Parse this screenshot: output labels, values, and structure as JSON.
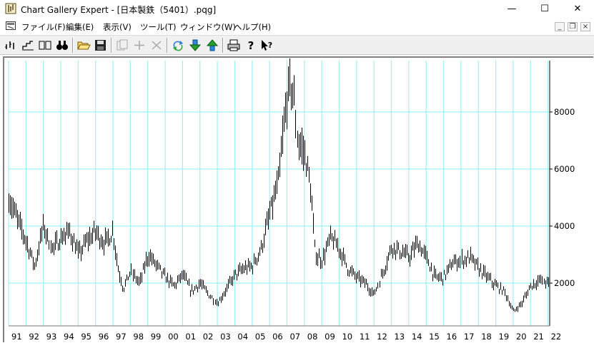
{
  "window": {
    "title": "Chart Gallery Expert - [日本製鉄（5401）.pqg]",
    "minimize_label": "—",
    "maximize_label": "☐",
    "close_label": "✕"
  },
  "menu": {
    "items": [
      {
        "label": "ファイル(F)"
      },
      {
        "label": "編集(E)"
      },
      {
        "label": "表示(V)"
      },
      {
        "label": "ツール(T)"
      },
      {
        "label": "ウィンドウ(W)"
      },
      {
        "label": "ヘルプ(H)"
      }
    ],
    "mdi_minimize": "_",
    "mdi_restore": "❐",
    "mdi_close": "×"
  },
  "toolbar": {
    "icons": [
      "bar-chart-icon",
      "step-chart-icon",
      "compare-icon",
      "binoculars-icon",
      "open-folder-icon",
      "save-disk-icon",
      "copy-icon",
      "add-icon",
      "remove-icon",
      "refresh-icon",
      "download-icon",
      "upload-icon",
      "print-icon",
      "help-icon",
      "context-help-icon"
    ]
  },
  "colors": {
    "grid": "#9ef0f5",
    "bars": "#000000",
    "axis": "#000000"
  },
  "chart_data": {
    "type": "bar",
    "subtype": "ohlc-price-bars",
    "x_axis_ticks": [
      "91",
      "92",
      "93",
      "94",
      "95",
      "96",
      "97",
      "98",
      "99",
      "00",
      "01",
      "02",
      "03",
      "04",
      "05",
      "06",
      "07",
      "08",
      "09",
      "10",
      "11",
      "12",
      "13",
      "14",
      "15",
      "16",
      "17",
      "18",
      "19",
      "20",
      "21",
      "22"
    ],
    "y_axis_ticks": [
      2000,
      4000,
      6000,
      8000
    ],
    "ylim": [
      500,
      9800
    ],
    "xlim": [
      1991.0,
      2022.1
    ],
    "y_axis_position": "right",
    "grid": true,
    "x": [
      1991.0,
      1991.5,
      1992.0,
      1992.5,
      1993.0,
      1993.5,
      1994.0,
      1994.5,
      1995.0,
      1995.5,
      1996.0,
      1996.5,
      1997.0,
      1997.3,
      1997.6,
      1998.0,
      1998.5,
      1999.0,
      1999.5,
      2000.0,
      2000.5,
      2001.0,
      2001.5,
      2002.0,
      2002.5,
      2003.0,
      2003.5,
      2004.0,
      2004.5,
      2005.0,
      2005.5,
      2006.0,
      2006.5,
      2007.0,
      2007.3,
      2007.6,
      2008.0,
      2008.3,
      2008.6,
      2009.0,
      2009.5,
      2010.0,
      2010.5,
      2011.0,
      2011.5,
      2012.0,
      2012.5,
      2013.0,
      2013.5,
      2014.0,
      2014.5,
      2015.0,
      2015.5,
      2016.0,
      2016.5,
      2017.0,
      2017.5,
      2018.0,
      2018.5,
      2019.0,
      2019.5,
      2020.0,
      2020.5,
      2021.0,
      2021.5,
      2022.0
    ],
    "values": [
      5000,
      4200,
      3500,
      2600,
      4000,
      3200,
      3600,
      3800,
      3000,
      3500,
      3800,
      3400,
      3800,
      2500,
      1800,
      2400,
      2000,
      3000,
      2600,
      2200,
      1900,
      2300,
      1700,
      2000,
      1600,
      1300,
      1800,
      2300,
      2500,
      2600,
      3200,
      4400,
      5500,
      8500,
      9000,
      7000,
      6500,
      5500,
      3000,
      2800,
      3600,
      3200,
      2500,
      2200,
      2000,
      1600,
      2400,
      3300,
      3100,
      2900,
      3400,
      2900,
      2200,
      2200,
      2700,
      2800,
      2900,
      2500,
      2200,
      1900,
      1700,
      1000,
      1300,
      1900,
      2100,
      2000
    ]
  }
}
